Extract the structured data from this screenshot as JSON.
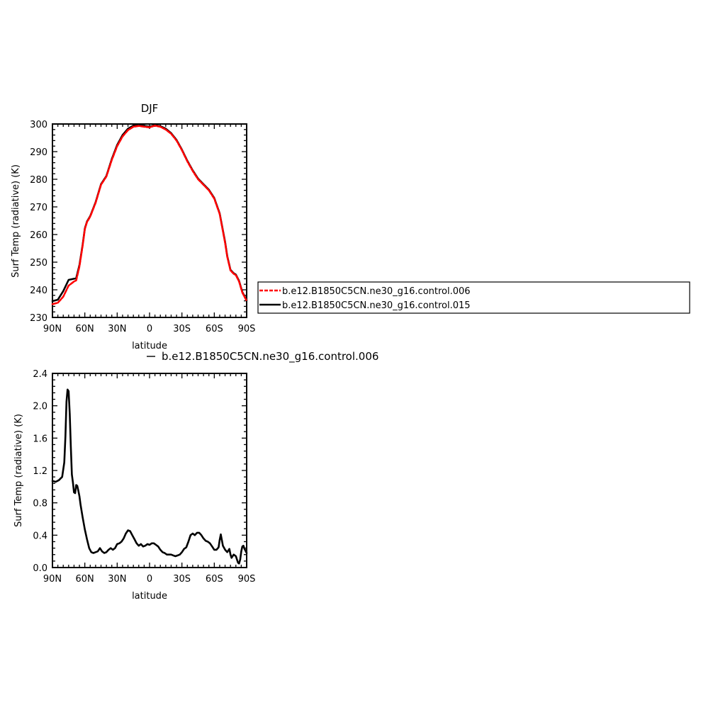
{
  "chart_data": [
    {
      "type": "line",
      "title": "DJF",
      "xlabel": "latitude",
      "ylabel": "Surf Temp (radiative) (K)",
      "xlim": [
        -90,
        90
      ],
      "ylim": [
        230,
        300
      ],
      "x_tick_labels": [
        "90N",
        "60N",
        "30N",
        "0",
        "30S",
        "60S",
        "90S"
      ],
      "y_tick_labels": [
        "230",
        "240",
        "250",
        "260",
        "270",
        "280",
        "290",
        "300"
      ],
      "legend_position": "right",
      "x_note": "latitude value: N positive, S negative; x increases to the right from 90N to 90S",
      "series": [
        {
          "name": "b.e12.B1850C5CN.ne30_g16.control.006",
          "color": "#ff0000",
          "dash": "dashed",
          "x": [
            90,
            85,
            80,
            75,
            70,
            68,
            65,
            62,
            60,
            58,
            55,
            50,
            45,
            40,
            35,
            30,
            25,
            20,
            15,
            10,
            5,
            0,
            -5,
            -10,
            -15,
            -20,
            -25,
            -30,
            -35,
            -40,
            -45,
            -50,
            -55,
            -60,
            -65,
            -70,
            -72,
            -75,
            -78,
            -80,
            -83,
            -86,
            -90
          ],
          "y": [
            234.8,
            235.3,
            237.5,
            241.5,
            243.0,
            243.4,
            248.5,
            256.0,
            262.0,
            264.5,
            266.5,
            271.5,
            278.0,
            281.0,
            287.0,
            292.0,
            295.5,
            297.8,
            299.0,
            299.3,
            299.0,
            298.8,
            299.4,
            299.0,
            298.0,
            296.5,
            294.0,
            290.5,
            286.5,
            283.0,
            280.0,
            278.0,
            276.0,
            273.0,
            267.5,
            257.0,
            252.0,
            247.0,
            245.8,
            245.3,
            243.0,
            239.0,
            236.0
          ]
        },
        {
          "name": "b.e12.B1850C5CN.ne30_g16.control.015",
          "color": "#000000",
          "dash": "solid",
          "x": [
            90,
            85,
            80,
            75,
            70,
            68,
            65,
            62,
            60,
            58,
            55,
            50,
            45,
            40,
            35,
            30,
            25,
            20,
            15,
            10,
            5,
            0,
            -5,
            -10,
            -15,
            -20,
            -25,
            -30,
            -35,
            -40,
            -45,
            -50,
            -55,
            -60,
            -65,
            -70,
            -72,
            -75,
            -78,
            -80,
            -83,
            -86,
            -90
          ],
          "y": [
            235.9,
            236.4,
            239.5,
            243.6,
            244.0,
            244.2,
            249.0,
            256.3,
            262.2,
            264.7,
            266.7,
            271.7,
            278.2,
            281.2,
            287.3,
            292.4,
            296.0,
            298.3,
            299.4,
            299.6,
            299.3,
            299.0,
            299.6,
            299.2,
            298.3,
            296.7,
            294.2,
            290.7,
            286.7,
            283.2,
            280.2,
            278.2,
            276.2,
            273.2,
            267.7,
            257.3,
            252.2,
            247.2,
            246.0,
            245.5,
            243.2,
            239.2,
            236.2
          ]
        }
      ]
    },
    {
      "type": "line",
      "title": "",
      "xlabel": "latitude",
      "ylabel": "Surf Temp (radiative) (K)",
      "xlim": [
        -90,
        90
      ],
      "ylim": [
        0,
        2.4
      ],
      "x_tick_labels": [
        "90N",
        "60N",
        "30N",
        "0",
        "30S",
        "60S",
        "90S"
      ],
      "y_tick_labels": [
        "0.0",
        "0.4",
        "0.8",
        "1.2",
        "1.6",
        "2.0",
        "2.4"
      ],
      "subtitle_right": "b.e12.B1850C5CN.ne30_g16.control.006",
      "series": [
        {
          "color": "#000000",
          "dash": "solid",
          "x": [
            90,
            87,
            84,
            81,
            79,
            78,
            77,
            76,
            75,
            74,
            73,
            72,
            71,
            70,
            69,
            68,
            67,
            66,
            65,
            64,
            62,
            60,
            58,
            56,
            54,
            52,
            50,
            48,
            46,
            44,
            42,
            40,
            38,
            36,
            34,
            32,
            30,
            28,
            26,
            24,
            22,
            20,
            18,
            16,
            14,
            12,
            10,
            8,
            6,
            4,
            2,
            0,
            -2,
            -4,
            -6,
            -8,
            -10,
            -12,
            -14,
            -16,
            -18,
            -20,
            -22,
            -24,
            -26,
            -28,
            -30,
            -32,
            -34,
            -36,
            -38,
            -40,
            -42,
            -44,
            -46,
            -48,
            -50,
            -52,
            -54,
            -56,
            -58,
            -60,
            -62,
            -64,
            -65,
            -66,
            -67,
            -68,
            -70,
            -72,
            -74,
            -75,
            -76,
            -78,
            -80,
            -81,
            -82,
            -83,
            -84,
            -85,
            -86,
            -87,
            -88,
            -90
          ],
          "y": [
            1.07,
            1.06,
            1.08,
            1.12,
            1.3,
            1.62,
            2.05,
            2.2,
            2.18,
            1.9,
            1.5,
            1.15,
            1.05,
            0.93,
            0.92,
            1.02,
            1.01,
            0.95,
            0.88,
            0.78,
            0.62,
            0.47,
            0.35,
            0.24,
            0.19,
            0.18,
            0.19,
            0.2,
            0.24,
            0.2,
            0.18,
            0.19,
            0.22,
            0.24,
            0.22,
            0.24,
            0.29,
            0.3,
            0.32,
            0.36,
            0.42,
            0.46,
            0.45,
            0.4,
            0.35,
            0.3,
            0.27,
            0.29,
            0.26,
            0.27,
            0.29,
            0.28,
            0.3,
            0.3,
            0.28,
            0.26,
            0.22,
            0.19,
            0.18,
            0.16,
            0.16,
            0.16,
            0.15,
            0.14,
            0.15,
            0.16,
            0.19,
            0.23,
            0.25,
            0.32,
            0.4,
            0.42,
            0.4,
            0.43,
            0.43,
            0.4,
            0.36,
            0.33,
            0.32,
            0.3,
            0.26,
            0.22,
            0.22,
            0.25,
            0.34,
            0.41,
            0.34,
            0.27,
            0.22,
            0.19,
            0.23,
            0.16,
            0.12,
            0.16,
            0.14,
            0.1,
            0.06,
            0.05,
            0.1,
            0.2,
            0.26,
            0.27,
            0.23,
            0.18
          ]
        }
      ]
    }
  ]
}
